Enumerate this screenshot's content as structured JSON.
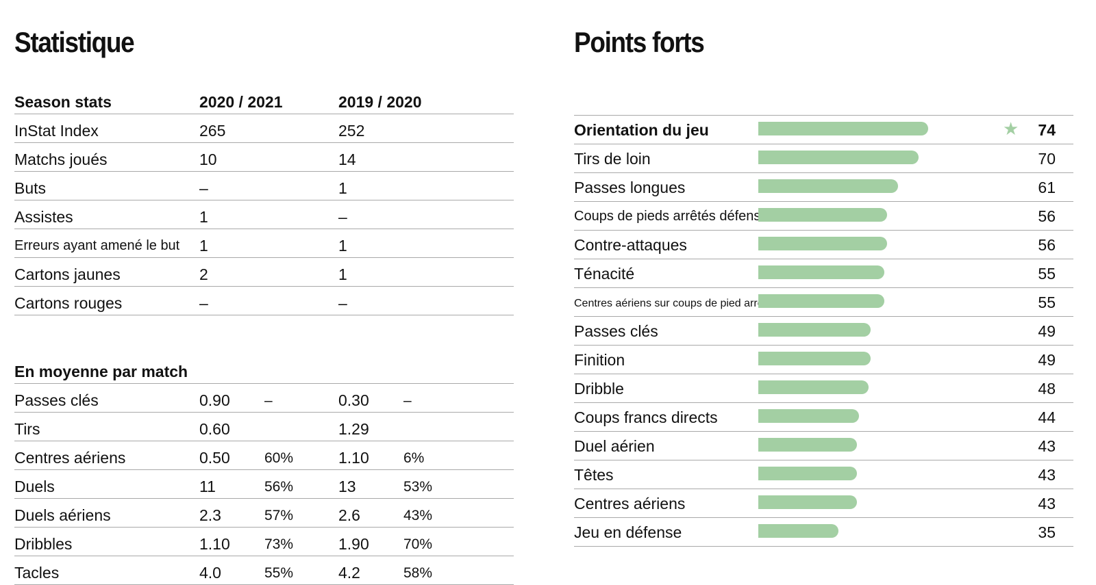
{
  "titles": {
    "left": "Statistique",
    "right": "Points forts"
  },
  "season_stats": {
    "header": [
      "Season stats",
      "2020 / 2021",
      "2019 / 2020"
    ],
    "rows": [
      [
        "InStat Index",
        "265",
        "252"
      ],
      [
        "Matchs joués",
        "10",
        "14"
      ],
      [
        "Buts",
        "–",
        "1"
      ],
      [
        "Assistes",
        "1",
        "–"
      ],
      [
        "Erreurs ayant amené le but",
        "1",
        "1"
      ],
      [
        "Cartons jaunes",
        "2",
        "1"
      ],
      [
        "Cartons rouges",
        "–",
        "–"
      ]
    ]
  },
  "per_match": {
    "header": "En moyenne par match",
    "rows": [
      [
        "Passes clés",
        "0.90",
        "–",
        "0.30",
        "–"
      ],
      [
        "Tirs",
        "0.60",
        "",
        "1.29",
        ""
      ],
      [
        "Centres aériens",
        "0.50",
        "60%",
        "1.10",
        "6%"
      ],
      [
        "Duels",
        "11",
        "56%",
        "13",
        "53%"
      ],
      [
        "Duels aériens",
        "2.3",
        "57%",
        "2.6",
        "43%"
      ],
      [
        "Dribbles",
        "1.10",
        "73%",
        "1.90",
        "70%"
      ],
      [
        "Tacles",
        "4.0",
        "55%",
        "4.2",
        "58%"
      ]
    ]
  },
  "strengths": [
    {
      "label": "Orientation du jeu",
      "value": 74,
      "star": "★"
    },
    {
      "label": "Tirs de loin",
      "value": 70
    },
    {
      "label": "Passes longues",
      "value": 61
    },
    {
      "label": "Coups de pieds arrêtés défensifs",
      "value": 56
    },
    {
      "label": "Contre-attaques",
      "value": 56
    },
    {
      "label": "Ténacité",
      "value": 55
    },
    {
      "label": "Centres aériens sur coups de pied arrêtés",
      "value": 55
    },
    {
      "label": "Passes clés",
      "value": 49
    },
    {
      "label": "Finition",
      "value": 49
    },
    {
      "label": "Dribble",
      "value": 48
    },
    {
      "label": "Coups francs directs",
      "value": 44
    },
    {
      "label": "Duel aérien",
      "value": 43
    },
    {
      "label": "Têtes",
      "value": 43
    },
    {
      "label": "Centres aériens",
      "value": 43
    },
    {
      "label": "Jeu en défense",
      "value": 35
    }
  ],
  "colors": {
    "bar": "#a3cfa3",
    "rule": "#a8a8a8"
  }
}
